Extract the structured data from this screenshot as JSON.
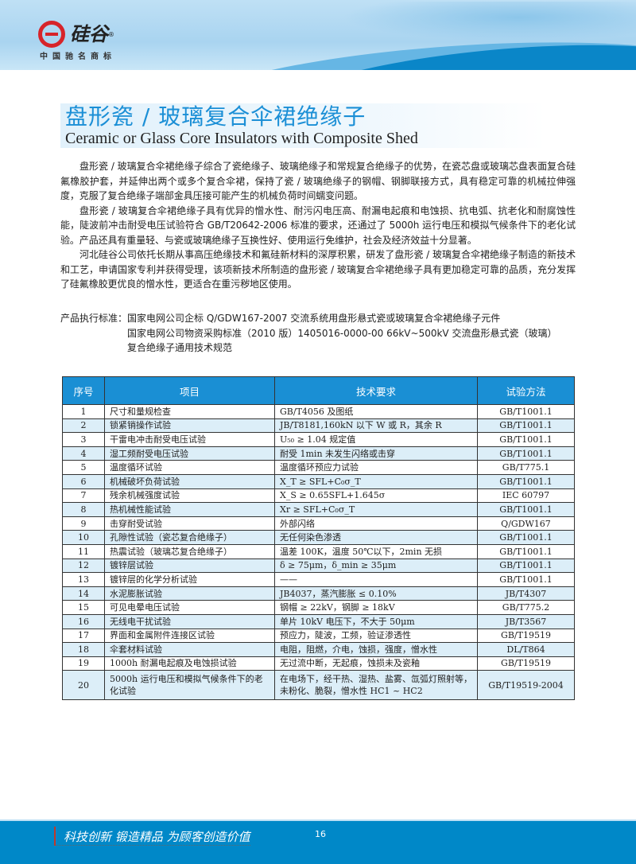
{
  "header": {
    "brand": "硅谷",
    "registered": "®",
    "tagline": "中国驰名商标"
  },
  "title": {
    "cn": "盘形瓷 / 玻璃复合伞裙绝缘子",
    "en": "Ceramic or Glass Core Insulators with Composite Shed"
  },
  "intro": [
    "盘形瓷 / 玻璃复合伞裙绝缘子综合了瓷绝缘子、玻璃绝缘子和常规复合绝缘子的优势，在瓷芯盘或玻璃芯盘表面复合硅氟橡胶护套，并延伸出两个或多个复合伞裙，保持了瓷 / 玻璃绝缘子的钢帽、钢脚联接方式，具有稳定可靠的机械拉伸强度，克服了复合绝缘子端部金具压接可能产生的机械负荷时间蠕变问题。",
    "盘形瓷 / 玻璃复合伞裙绝缘子具有优异的憎水性、耐污闪电压高、耐漏电起痕和电蚀损、抗电弧、抗老化和耐腐蚀性能，陡波前冲击耐受电压试验符合 GB/T20642-2006 标准的要求，还通过了 5000h 运行电压和模拟气候条件下的老化试验。产品还具有重量轻、与瓷或玻璃绝缘子互换性好、使用运行免维护，社会及经济效益十分显著。",
    "河北硅谷公司依托长期从事高压绝缘技术和氟硅新材料的深厚积累，研发了盘形瓷 / 玻璃复合伞裙绝缘子制造的新技术和工艺，申请国家专利并获得受理，该项新技术所制造的盘形瓷 / 玻璃复合伞裙绝缘子具有更加稳定可靠的品质，充分发挥了硅氟橡胶更优良的憎水性，更适合在重污秽地区使用。"
  ],
  "standards": {
    "label": "产品执行标准：",
    "lines": [
      "国家电网公司企标 Q/GDW167-2007 交流系统用盘形悬式瓷或玻璃复合伞裙绝缘子元件",
      "国家电网公司物资采购标准（2010 版）1405016-0000-00 66kV~500kV 交流盘形悬式瓷（玻璃）",
      "复合绝缘子通用技术规范"
    ]
  },
  "table": {
    "headers": [
      "序号",
      "项目",
      "技术要求",
      "试验方法"
    ],
    "rows": [
      [
        "1",
        "尺寸和量规检查",
        "GB/T4056 及图纸",
        "GB/T1001.1"
      ],
      [
        "2",
        "锁紧销操作试验",
        "JB/T8181,160kN 以下 W 或 R，其余 R",
        "GB/T1001.1"
      ],
      [
        "3",
        "干雷电冲击耐受电压试验",
        "U₅₀ ≥ 1.04 规定值",
        "GB/T1001.1"
      ],
      [
        "4",
        "湿工频耐受电压试验",
        "耐受 1min 未发生闪络或击穿",
        "GB/T1001.1"
      ],
      [
        "5",
        "温度循环试验",
        "温度循环预应力试验",
        "GB/T775.1"
      ],
      [
        "6",
        "机械破坏负荷试验",
        "X_T ≥ SFL+C₀σ_T",
        "GB/T1001.1"
      ],
      [
        "7",
        "残余机械强度试验",
        "X_S ≥ 0.65SFL+1.645σ",
        "IEC 60797"
      ],
      [
        "8",
        "热机械性能试验",
        "Xr ≥ SFL+C₀σ_T",
        "GB/T1001.1"
      ],
      [
        "9",
        "击穿耐受试验",
        "外部闪络",
        "Q/GDW167"
      ],
      [
        "10",
        "孔隙性试验（瓷芯复合绝缘子）",
        "无任何染色渗透",
        "GB/T1001.1"
      ],
      [
        "11",
        "热震试验（玻璃芯复合绝缘子）",
        "温差 100K，温度 50℃以下，2min 无损",
        "GB/T1001.1"
      ],
      [
        "12",
        "镀锌层试验",
        "δ ≥ 75μm，δ_min ≥ 35μm",
        "GB/T1001.1"
      ],
      [
        "13",
        "镀锌层的化学分析试验",
        "——",
        "GB/T1001.1"
      ],
      [
        "14",
        "水泥膨胀试验",
        "JB4037，蒸汽膨胀 ≤ 0.10%",
        "JB/T4307"
      ],
      [
        "15",
        "可见电晕电压试验",
        "钢帽 ≥ 22kV，钢脚 ≥ 18kV",
        "GB/T775.2"
      ],
      [
        "16",
        "无线电干扰试验",
        "单片 10kV 电压下，不大于 50μm",
        "JB/T3567"
      ],
      [
        "17",
        "界面和金属附件连接区试验",
        "预应力，陡波，工频，验证渗透性",
        "GB/T19519"
      ],
      [
        "18",
        "伞套材料试验",
        "电阻，阻燃，介电，蚀损，强度，憎水性",
        "DL/T864"
      ],
      [
        "19",
        "1000h 耐漏电起痕及电蚀损试验",
        "无过流中断，无起痕，蚀损未及瓷釉",
        "GB/T19519"
      ],
      [
        "20",
        "5000h 运行电压和模拟气候条件下的老化试验",
        "在电场下，经干热、湿热、盐雾、氙弧灯照射等，未粉化、脆裂，憎水性 HC1 ~ HC2",
        "GB/T19519-2004"
      ]
    ]
  },
  "footer": {
    "slogan": "科技创新  锻造精品  为顾客创造价值",
    "page": "16"
  },
  "colors": {
    "brand_blue": "#1a8fd4",
    "footer_blue": "#0088c8",
    "logo_red": "#d7242a",
    "row_stripe": "#dceef8"
  }
}
